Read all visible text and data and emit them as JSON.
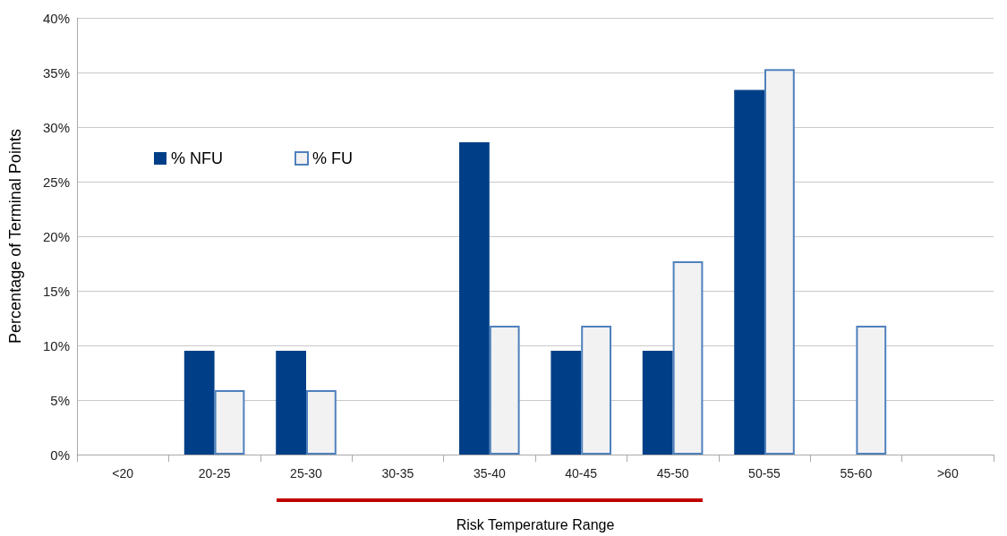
{
  "chart_data": {
    "type": "bar",
    "xlabel": "Risk Temperature Range",
    "ylabel": "Percentage of Terminal Points",
    "categories": [
      "<20",
      "20-25",
      "25-30",
      "30-35",
      "35-40",
      "40-45",
      "45-50",
      "50-55",
      "55-60",
      ">60"
    ],
    "series": [
      {
        "name": "% NFU",
        "color": "#003f87",
        "values": [
          0,
          9.5,
          9.5,
          0,
          28.6,
          9.5,
          9.5,
          33.4,
          0,
          0
        ]
      },
      {
        "name": "% FU",
        "color": "#f2f2f2",
        "values": [
          0,
          5.9,
          5.9,
          0,
          11.8,
          11.8,
          17.7,
          35.3,
          11.8,
          0
        ]
      }
    ],
    "ylim": [
      0,
      40
    ],
    "yticks": [
      {
        "value": 0,
        "label": "0%"
      },
      {
        "value": 5,
        "label": "5%"
      },
      {
        "value": 10,
        "label": "10%"
      },
      {
        "value": 15,
        "label": "15%"
      },
      {
        "value": 20,
        "label": "20%"
      },
      {
        "value": 25,
        "label": "25%"
      },
      {
        "value": 30,
        "label": "30%"
      },
      {
        "value": 35,
        "label": "35%"
      },
      {
        "value": 40,
        "label": "40%"
      }
    ],
    "grid": "y",
    "legend": "top left"
  }
}
